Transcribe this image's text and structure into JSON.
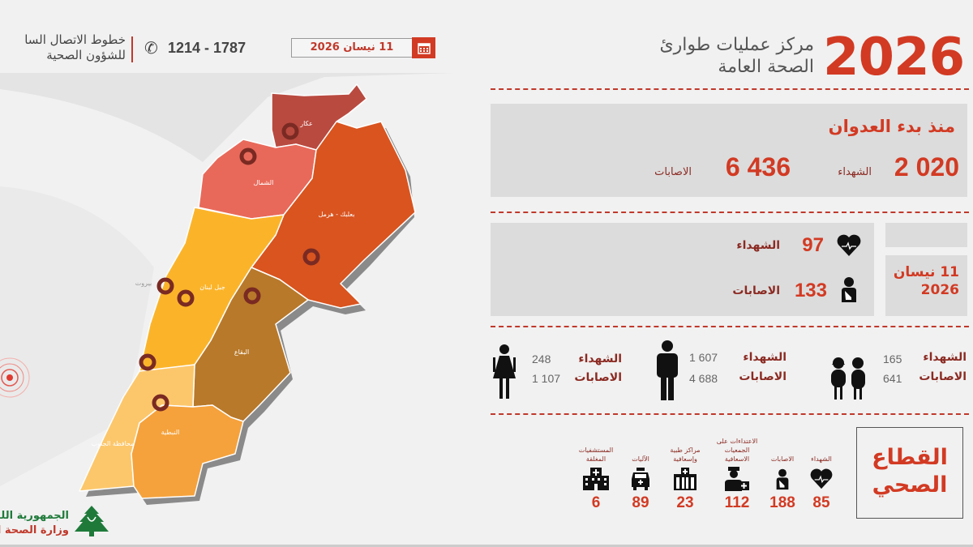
{
  "header": {
    "hotline_line1": "خطوط الاتصال السا",
    "hotline_line2": "للشؤون الصحية",
    "phone": "1214 - 1787",
    "date": "11 نيسان 2026",
    "year": "2026",
    "title_line1": "مركز عمليات طوارئ",
    "title_line2": "الصحة العامة"
  },
  "map": {
    "regions": [
      {
        "name": "عكار",
        "color": "#b94a40"
      },
      {
        "name": "الشمال",
        "color": "#e8695a"
      },
      {
        "name": "بعلبك - هرمل",
        "color": "#d9541f"
      },
      {
        "name": "جبل لبنان",
        "color": "#fbb42a"
      },
      {
        "name": "البقاع",
        "color": "#b8792a"
      },
      {
        "name": "محافظة الجنوب",
        "color": "#fcc76b"
      },
      {
        "name": "النبطية",
        "color": "#f5a23c"
      }
    ],
    "city": "بيروت"
  },
  "logo": {
    "line1": "الجمهورية اللب",
    "line2": "وزارة الصحة ال"
  },
  "since_start": {
    "title": "منذ بدء العدوان",
    "killed_value": "2 020",
    "killed_label": "الشهداء",
    "injured_value": "6 436",
    "injured_label": "الاصابات"
  },
  "daily": {
    "date_line1": "11 نيسان",
    "date_line2": "2026",
    "killed_value": "97",
    "killed_label": "الشهداء",
    "injured_value": "133",
    "injured_label": "الاصابات"
  },
  "demographics": [
    {
      "group": "children",
      "killed_label": "الشهداء",
      "killed": "165",
      "injured_label": "الاصابات",
      "injured": "641"
    },
    {
      "group": "men",
      "killed_label": "الشهداء",
      "killed": "1 607",
      "injured_label": "الاصابات",
      "injured": "4 688"
    },
    {
      "group": "women",
      "killed_label": "الشهداء",
      "killed": "248",
      "injured_label": "الاصابات",
      "injured": "1 107"
    }
  ],
  "health_sector": {
    "title_line1": "القطاع",
    "title_line2": "الصحي",
    "items": [
      {
        "label": "الشهداء",
        "value": "85",
        "icon": "heart-pulse-icon"
      },
      {
        "label": "الاصابات",
        "value": "188",
        "icon": "injured-person-icon"
      },
      {
        "label": "الاعتداءات على الجمعيات الاسعافية",
        "value": "112",
        "icon": "paramedic-icon"
      },
      {
        "label": "مراكز طبية وإسعافية",
        "value": "23",
        "icon": "medical-center-icon"
      },
      {
        "label": "الآليات",
        "value": "89",
        "icon": "ambulance-icon"
      },
      {
        "label": "المستشفيات المغلقة",
        "value": "6",
        "icon": "hospital-icon"
      }
    ]
  },
  "colors": {
    "accent": "#d23a23",
    "label": "#8b2a22",
    "panel": "#dcdcdc",
    "background": "#f1f1f1"
  }
}
